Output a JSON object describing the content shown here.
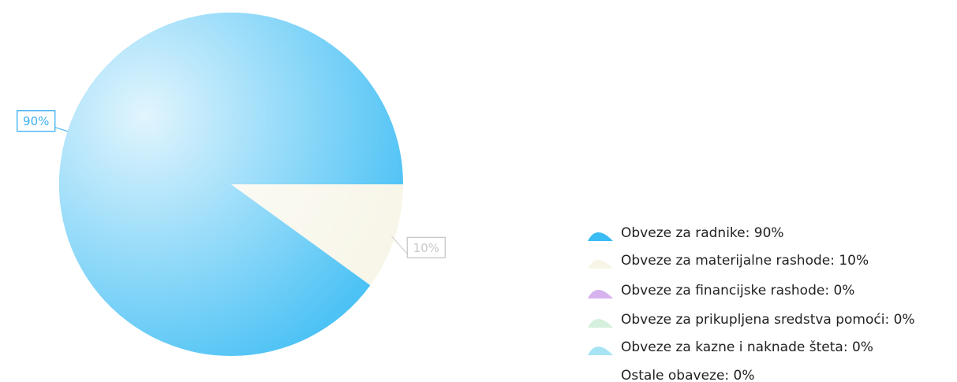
{
  "chart_data": {
    "type": "pie",
    "categories": [
      "Obveze za radnike: 90%",
      "Obveze za materijalne rashode: 10%",
      "Obveze za financijske rashode: 0%",
      "Obveze za prikupljena sredstva pomoći: 0%",
      "Obveze za kazne i naknade šteta: 0%",
      "Ostale obaveze: 0%"
    ],
    "values": [
      90,
      10,
      0,
      0,
      0,
      0
    ],
    "value_labels": [
      "90%",
      "10%",
      null,
      null,
      null,
      null
    ],
    "colors": [
      "#3bbcf4",
      "#f7f5e6",
      "#d6b3ee",
      "#d4f0dc",
      "#a6e3f3",
      "#ffffff"
    ],
    "label_colors": [
      "#3bb0f0",
      "#c8c8c8",
      null,
      null,
      null,
      null
    ],
    "legend": "right"
  }
}
